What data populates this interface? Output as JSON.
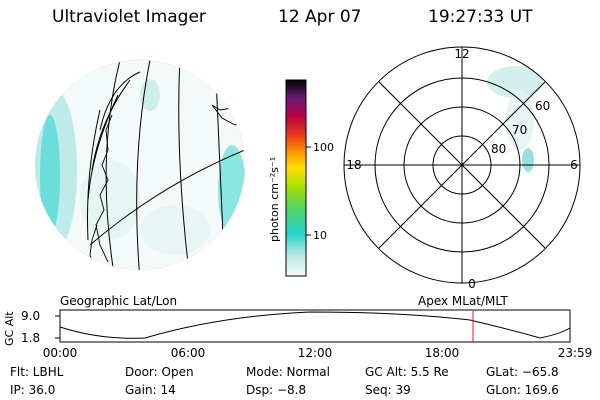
{
  "header": {
    "title": "Ultraviolet Imager",
    "date": "12 Apr 07",
    "time": "19:27:33 UT"
  },
  "map_label": "Geographic Lat/Lon",
  "polar": {
    "label": "Apex MLat/MLT",
    "mlt_labels": {
      "top": "12",
      "left": "18",
      "right": "6",
      "bottom": "0"
    },
    "lat_labels": [
      "60",
      "70",
      "80"
    ]
  },
  "colorbar": {
    "unit": "photon cm⁻²s⁻¹",
    "ticks": [
      "100",
      "10"
    ]
  },
  "timeline": {
    "y_label": "GC Alt",
    "y_ticks": [
      "9.0",
      "1.8"
    ],
    "x_ticks": [
      "00:00",
      "06:00",
      "12:00",
      "18:00",
      "23:59"
    ],
    "marker_color": "#cc2222"
  },
  "info": {
    "row1": [
      "Flt: LBHL",
      "Door: Open",
      "Mode: Normal",
      "GC Alt: 5.5 Re",
      "GLat: −65.8"
    ],
    "row2": [
      "IP: 36.0",
      "Gain: 14",
      "Dsp:   −8.8",
      "Seq: 39",
      "GLon: 169.6"
    ]
  },
  "colors": {
    "cyan": "#33d6d0",
    "pale": "#c9ece9"
  }
}
